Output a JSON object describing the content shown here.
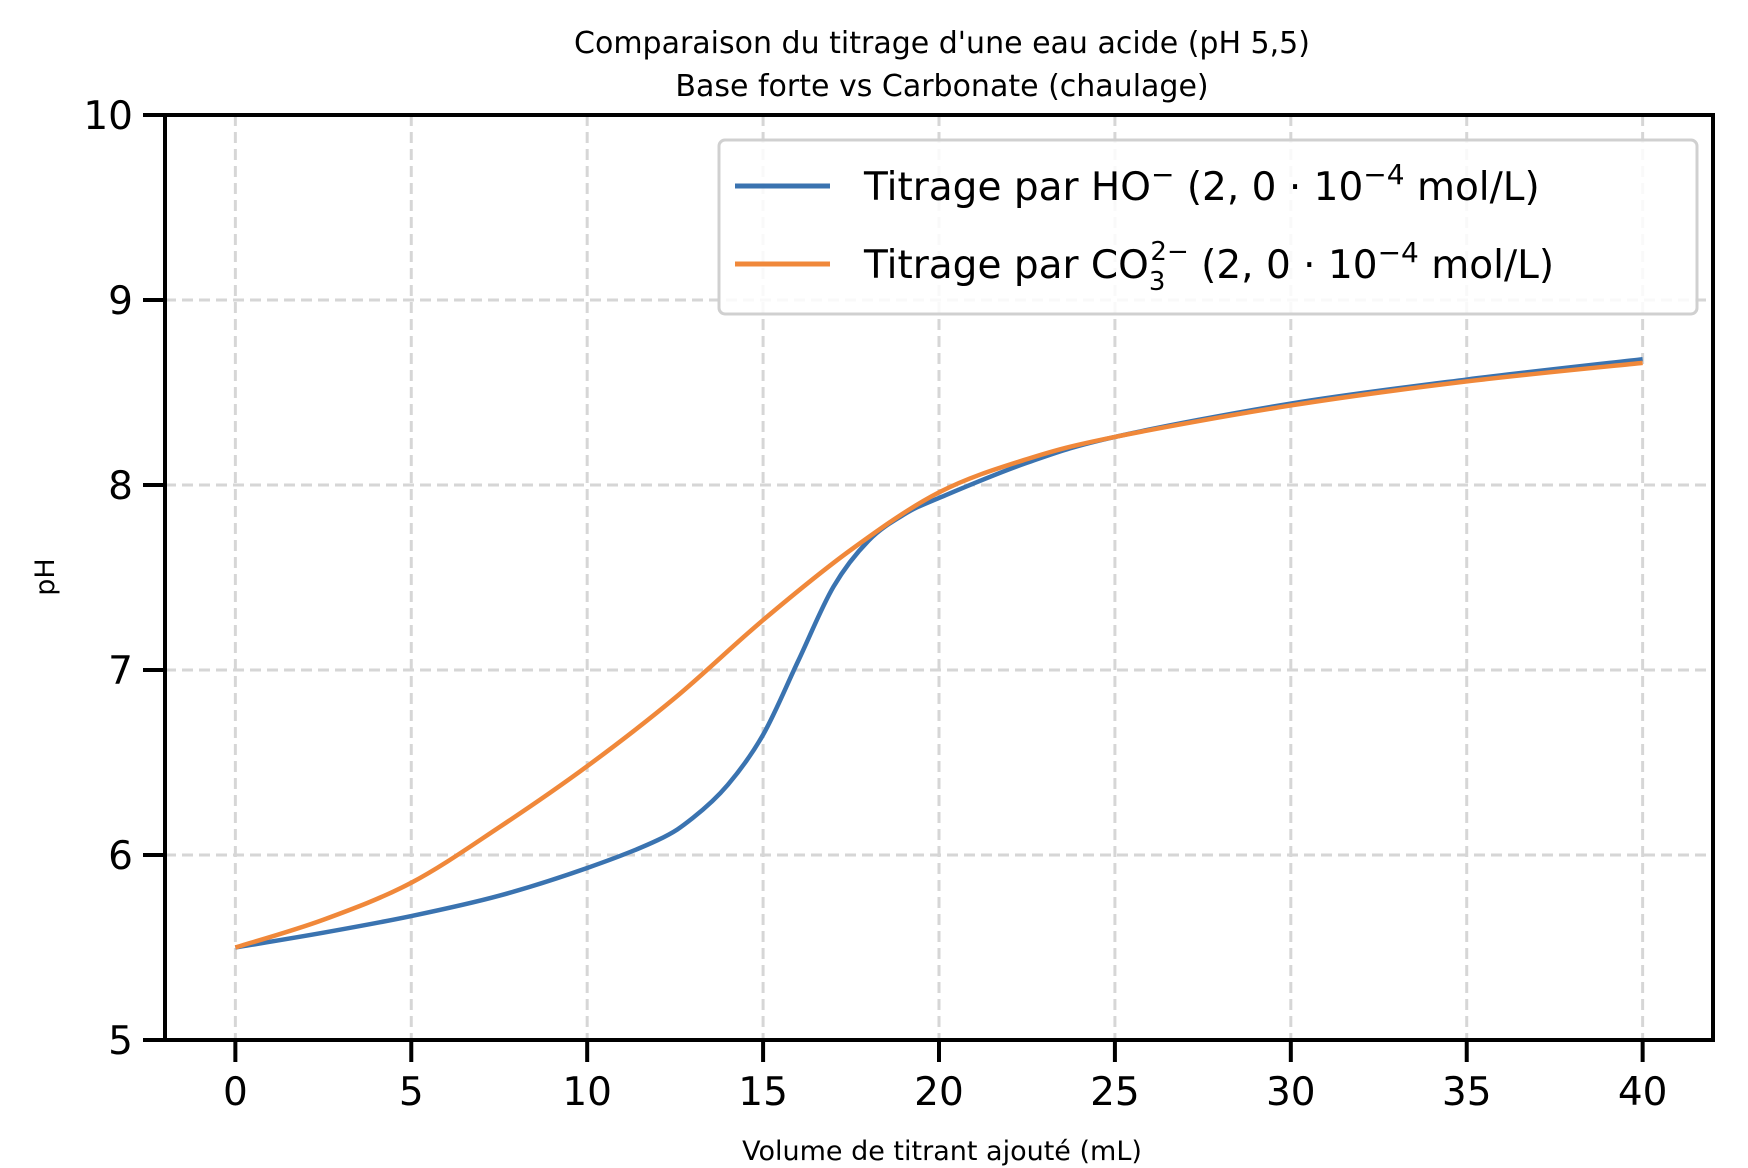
{
  "chart_data": {
    "type": "line",
    "title": "Comparaison du titrage d'une eau acide (pH 5,5)",
    "subtitle": "Base forte vs Carbonate (chaulage)",
    "xlabel": "Volume de titrant ajouté (mL)",
    "ylabel": "pH",
    "xlim": [
      -2,
      42
    ],
    "ylim": [
      5,
      10
    ],
    "xticks": [
      0,
      5,
      10,
      15,
      20,
      25,
      30,
      35,
      40
    ],
    "yticks": [
      5,
      6,
      7,
      8,
      9,
      10
    ],
    "grid": true,
    "legend_position": "top-right",
    "series": [
      {
        "name": "Titrage par HO⁻ (2,0·10⁻⁴ mol/L)",
        "label_main": "Titrage par HO",
        "label_sup": "−",
        "label_sub": "",
        "label_tail": " (2, 0 · 10",
        "label_exp": "−4",
        "label_end": " mol/L)",
        "color": "#3a73b0",
        "x": [
          0,
          2.5,
          5,
          7.5,
          10,
          12,
          13,
          14,
          15,
          16,
          17,
          18,
          19,
          20,
          22.5,
          25,
          30,
          35,
          40
        ],
        "y": [
          5.5,
          5.58,
          5.67,
          5.78,
          5.93,
          6.08,
          6.2,
          6.38,
          6.65,
          7.05,
          7.45,
          7.7,
          7.84,
          7.93,
          8.12,
          8.26,
          8.44,
          8.57,
          8.68
        ]
      },
      {
        "name": "Titrage par CO₃²⁻ (2,0·10⁻⁴ mol/L)",
        "label_main": "Titrage par CO",
        "label_sup": "2−",
        "label_sub": "3",
        "label_tail": " (2, 0 · 10",
        "label_exp": "−4",
        "label_end": " mol/L)",
        "color": "#f0883a",
        "x": [
          0,
          2.5,
          5,
          7.5,
          10,
          12.5,
          15,
          17.5,
          20,
          22.5,
          25,
          30,
          35,
          40
        ],
        "y": [
          5.5,
          5.65,
          5.85,
          6.15,
          6.48,
          6.85,
          7.27,
          7.65,
          7.96,
          8.14,
          8.26,
          8.43,
          8.56,
          8.66
        ]
      }
    ]
  }
}
